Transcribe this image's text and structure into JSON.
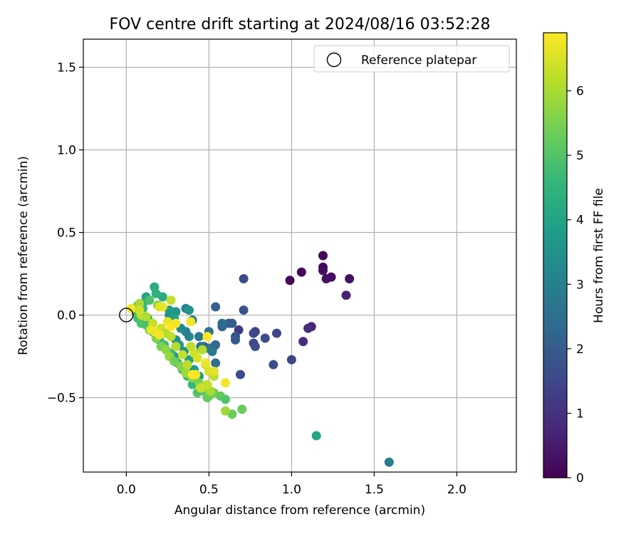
{
  "chart_data": {
    "type": "scatter",
    "title": "FOV centre drift starting at 2024/08/16 03:52:28",
    "xlabel": "Angular distance from reference (arcmin)",
    "ylabel": "Rotation from reference (arcmin)",
    "xlim": [
      -0.26,
      2.36
    ],
    "ylim": [
      -0.95,
      1.67
    ],
    "xticks": [
      0.0,
      0.5,
      1.0,
      1.5,
      2.0
    ],
    "xtick_labels": [
      "0.0",
      "0.5",
      "1.0",
      "1.5",
      "2.0"
    ],
    "yticks": [
      -0.5,
      0.0,
      0.5,
      1.0,
      1.5
    ],
    "ytick_labels": [
      "−0.5",
      "0.0",
      "0.5",
      "1.0",
      "1.5"
    ],
    "grid": true,
    "legend": {
      "position": "top-right",
      "entries": [
        {
          "label": "Reference platepar",
          "marker": "open-circle"
        }
      ]
    },
    "reference_point": {
      "x": 0.0,
      "y": 0.0
    },
    "colorbar": {
      "label": "Hours from first FF file",
      "range": [
        0,
        6.9
      ],
      "ticks": [
        0,
        1,
        2,
        3,
        4,
        5,
        6
      ],
      "tick_labels": [
        "0",
        "1",
        "2",
        "3",
        "4",
        "5",
        "6"
      ],
      "colormap": "viridis",
      "colormap_stops": [
        "#440154",
        "#482878",
        "#3e4989",
        "#31688e",
        "#26828e",
        "#1f9e89",
        "#35b779",
        "#6ece58",
        "#b5de2b",
        "#fde725"
      ]
    },
    "series": [
      {
        "points": [
          {
            "x": 0.99,
            "y": 0.21,
            "c": 0.05
          },
          {
            "x": 1.06,
            "y": 0.26,
            "c": 0.1
          },
          {
            "x": 1.19,
            "y": 0.36,
            "c": 0.1
          },
          {
            "x": 1.19,
            "y": 0.29,
            "c": 0.15
          },
          {
            "x": 1.19,
            "y": 0.27,
            "c": 0.2
          },
          {
            "x": 1.24,
            "y": 0.23,
            "c": 0.25
          },
          {
            "x": 1.21,
            "y": 0.22,
            "c": 0.3
          },
          {
            "x": 1.35,
            "y": 0.22,
            "c": 0.3
          },
          {
            "x": 1.33,
            "y": 0.12,
            "c": 0.6
          },
          {
            "x": 1.12,
            "y": -0.07,
            "c": 0.7
          },
          {
            "x": 1.1,
            "y": -0.08,
            "c": 0.9
          },
          {
            "x": 1.07,
            "y": -0.16,
            "c": 0.9
          },
          {
            "x": 1.0,
            "y": -0.27,
            "c": 1.4
          },
          {
            "x": 0.91,
            "y": -0.11,
            "c": 1.5
          },
          {
            "x": 0.89,
            "y": -0.3,
            "c": 1.6
          },
          {
            "x": 0.84,
            "y": -0.14,
            "c": 1.6
          },
          {
            "x": 0.78,
            "y": -0.1,
            "c": 1.4
          },
          {
            "x": 0.77,
            "y": -0.11,
            "c": 1.5
          },
          {
            "x": 0.77,
            "y": -0.17,
            "c": 1.5
          },
          {
            "x": 0.78,
            "y": -0.19,
            "c": 1.6
          },
          {
            "x": 0.68,
            "y": -0.09,
            "c": 1.2
          },
          {
            "x": 0.69,
            "y": -0.36,
            "c": 1.6
          },
          {
            "x": 0.71,
            "y": 0.22,
            "c": 1.6
          },
          {
            "x": 0.71,
            "y": 0.03,
            "c": 1.8
          },
          {
            "x": 0.66,
            "y": -0.13,
            "c": 1.8
          },
          {
            "x": 0.66,
            "y": -0.15,
            "c": 1.9
          },
          {
            "x": 0.62,
            "y": -0.05,
            "c": 2.0
          },
          {
            "x": 0.64,
            "y": -0.05,
            "c": 2.0
          },
          {
            "x": 0.58,
            "y": -0.07,
            "c": 2.2
          },
          {
            "x": 0.58,
            "y": -0.05,
            "c": 2.4
          },
          {
            "x": 0.54,
            "y": 0.05,
            "c": 2.1
          },
          {
            "x": 0.53,
            "y": -0.19,
            "c": 2.2
          },
          {
            "x": 0.54,
            "y": -0.18,
            "c": 2.3
          },
          {
            "x": 0.54,
            "y": -0.29,
            "c": 2.5
          },
          {
            "x": 0.5,
            "y": -0.1,
            "c": 2.6
          },
          {
            "x": 0.49,
            "y": -0.2,
            "c": 2.7
          },
          {
            "x": 0.47,
            "y": -0.19,
            "c": 2.4
          },
          {
            "x": 0.45,
            "y": -0.19,
            "c": 2.6
          },
          {
            "x": 0.52,
            "y": -0.22,
            "c": 2.8
          },
          {
            "x": 1.59,
            "y": -0.89,
            "c": 2.9
          },
          {
            "x": 1.15,
            "y": -0.73,
            "c": 4.0
          },
          {
            "x": 0.44,
            "y": -0.13,
            "c": 2.8
          },
          {
            "x": 0.4,
            "y": -0.03,
            "c": 3.0
          },
          {
            "x": 0.38,
            "y": -0.13,
            "c": 3.2
          },
          {
            "x": 0.36,
            "y": -0.1,
            "c": 3.0
          },
          {
            "x": 0.33,
            "y": -0.08,
            "c": 3.3
          },
          {
            "x": 0.36,
            "y": 0.04,
            "c": 3.1
          },
          {
            "x": 0.38,
            "y": 0.03,
            "c": 3.6
          },
          {
            "x": 0.3,
            "y": 0.02,
            "c": 3.6
          },
          {
            "x": 0.26,
            "y": 0.03,
            "c": 3.8
          },
          {
            "x": 0.26,
            "y": 0.0,
            "c": 3.5
          },
          {
            "x": 0.29,
            "y": -0.02,
            "c": 3.9
          },
          {
            "x": 0.3,
            "y": -0.15,
            "c": 3.4
          },
          {
            "x": 0.32,
            "y": -0.18,
            "c": 3.6
          },
          {
            "x": 0.35,
            "y": -0.22,
            "c": 3.4
          },
          {
            "x": 0.38,
            "y": -0.27,
            "c": 3.9
          },
          {
            "x": 0.41,
            "y": -0.33,
            "c": 3.8
          },
          {
            "x": 0.44,
            "y": -0.37,
            "c": 3.7
          },
          {
            "x": 0.29,
            "y": -0.25,
            "c": 3.8
          },
          {
            "x": 0.22,
            "y": 0.11,
            "c": 4.2
          },
          {
            "x": 0.17,
            "y": 0.17,
            "c": 4.3
          },
          {
            "x": 0.18,
            "y": 0.13,
            "c": 4.4
          },
          {
            "x": 0.12,
            "y": 0.11,
            "c": 4.0
          },
          {
            "x": 0.1,
            "y": 0.07,
            "c": 4.3
          },
          {
            "x": 0.07,
            "y": 0.06,
            "c": 4.7
          },
          {
            "x": 0.1,
            "y": 0.04,
            "c": 4.6
          },
          {
            "x": 0.14,
            "y": 0.09,
            "c": 4.9
          },
          {
            "x": 0.06,
            "y": 0.01,
            "c": 4.9
          },
          {
            "x": 0.07,
            "y": -0.02,
            "c": 4.8
          },
          {
            "x": 0.09,
            "y": -0.05,
            "c": 5.0
          },
          {
            "x": 0.12,
            "y": -0.06,
            "c": 4.9
          },
          {
            "x": 0.13,
            "y": -0.02,
            "c": 4.6
          },
          {
            "x": 0.16,
            "y": -0.1,
            "c": 4.4
          },
          {
            "x": 0.2,
            "y": -0.15,
            "c": 4.5
          },
          {
            "x": 0.23,
            "y": -0.18,
            "c": 4.8
          },
          {
            "x": 0.27,
            "y": -0.23,
            "c": 4.6
          },
          {
            "x": 0.31,
            "y": -0.29,
            "c": 4.5
          },
          {
            "x": 0.34,
            "y": -0.33,
            "c": 4.7
          },
          {
            "x": 0.37,
            "y": -0.37,
            "c": 4.8
          },
          {
            "x": 0.4,
            "y": -0.42,
            "c": 4.6
          },
          {
            "x": 0.43,
            "y": -0.47,
            "c": 5.0
          },
          {
            "x": 0.46,
            "y": -0.46,
            "c": 5.1
          },
          {
            "x": 0.49,
            "y": -0.5,
            "c": 5.2
          },
          {
            "x": 0.5,
            "y": -0.49,
            "c": 5.3
          },
          {
            "x": 0.53,
            "y": -0.47,
            "c": 5.4
          },
          {
            "x": 0.57,
            "y": -0.49,
            "c": 5.2
          },
          {
            "x": 0.6,
            "y": -0.51,
            "c": 5.0
          },
          {
            "x": 0.64,
            "y": -0.6,
            "c": 5.3
          },
          {
            "x": 0.7,
            "y": -0.57,
            "c": 5.3
          },
          {
            "x": 0.6,
            "y": -0.58,
            "c": 5.9
          },
          {
            "x": 0.14,
            "y": -0.09,
            "c": 5.4
          },
          {
            "x": 0.18,
            "y": -0.14,
            "c": 5.6
          },
          {
            "x": 0.21,
            "y": -0.19,
            "c": 5.5
          },
          {
            "x": 0.24,
            "y": -0.21,
            "c": 5.7
          },
          {
            "x": 0.26,
            "y": -0.25,
            "c": 5.8
          },
          {
            "x": 0.29,
            "y": -0.28,
            "c": 5.4
          },
          {
            "x": 0.33,
            "y": -0.31,
            "c": 5.6
          },
          {
            "x": 0.36,
            "y": -0.35,
            "c": 5.9
          },
          {
            "x": 0.4,
            "y": -0.38,
            "c": 5.7
          },
          {
            "x": 0.44,
            "y": -0.41,
            "c": 5.5
          },
          {
            "x": 0.47,
            "y": -0.44,
            "c": 5.8
          },
          {
            "x": 0.51,
            "y": -0.46,
            "c": 6.0
          },
          {
            "x": 0.19,
            "y": 0.06,
            "c": 5.6
          },
          {
            "x": 0.08,
            "y": 0.07,
            "c": 6.0
          },
          {
            "x": 0.09,
            "y": 0.0,
            "c": 6.2
          },
          {
            "x": 0.12,
            "y": -0.01,
            "c": 6.1
          },
          {
            "x": 0.16,
            "y": -0.05,
            "c": 6.3
          },
          {
            "x": 0.21,
            "y": -0.08,
            "c": 6.4
          },
          {
            "x": 0.24,
            "y": -0.11,
            "c": 6.1
          },
          {
            "x": 0.27,
            "y": -0.13,
            "c": 6.2
          },
          {
            "x": 0.3,
            "y": -0.19,
            "c": 6.1
          },
          {
            "x": 0.34,
            "y": -0.24,
            "c": 6.3
          },
          {
            "x": 0.39,
            "y": -0.19,
            "c": 6.2
          },
          {
            "x": 0.41,
            "y": -0.23,
            "c": 6.4
          },
          {
            "x": 0.43,
            "y": -0.26,
            "c": 6.5
          },
          {
            "x": 0.46,
            "y": -0.21,
            "c": 6.1
          },
          {
            "x": 0.48,
            "y": -0.3,
            "c": 6.3
          },
          {
            "x": 0.5,
            "y": -0.34,
            "c": 6.5
          },
          {
            "x": 0.53,
            "y": -0.37,
            "c": 6.2
          },
          {
            "x": 0.45,
            "y": -0.44,
            "c": 6.4
          },
          {
            "x": 0.49,
            "y": -0.42,
            "c": 6.3
          },
          {
            "x": 0.37,
            "y": -0.3,
            "c": 6.2
          },
          {
            "x": 0.27,
            "y": 0.09,
            "c": 6.3
          },
          {
            "x": 0.2,
            "y": 0.05,
            "c": 6.6
          },
          {
            "x": 0.22,
            "y": 0.05,
            "c": 6.7
          },
          {
            "x": 0.17,
            "y": -0.1,
            "c": 6.8
          },
          {
            "x": 0.15,
            "y": -0.09,
            "c": 6.7
          },
          {
            "x": 0.2,
            "y": -0.12,
            "c": 6.8
          },
          {
            "x": 0.25,
            "y": -0.04,
            "c": 6.7
          },
          {
            "x": 0.27,
            "y": -0.07,
            "c": 6.9
          },
          {
            "x": 0.3,
            "y": -0.05,
            "c": 6.8
          },
          {
            "x": 0.39,
            "y": -0.04,
            "c": 6.8
          },
          {
            "x": 0.49,
            "y": -0.13,
            "c": 6.9
          },
          {
            "x": 0.48,
            "y": -0.29,
            "c": 6.7
          },
          {
            "x": 0.42,
            "y": -0.36,
            "c": 6.8
          },
          {
            "x": 0.4,
            "y": -0.36,
            "c": 6.9
          },
          {
            "x": 0.6,
            "y": -0.41,
            "c": 6.8
          },
          {
            "x": 0.53,
            "y": -0.34,
            "c": 6.6
          },
          {
            "x": 0.03,
            "y": 0.04,
            "c": 6.8
          },
          {
            "x": 0.08,
            "y": 0.03,
            "c": 6.4
          }
        ]
      }
    ]
  }
}
